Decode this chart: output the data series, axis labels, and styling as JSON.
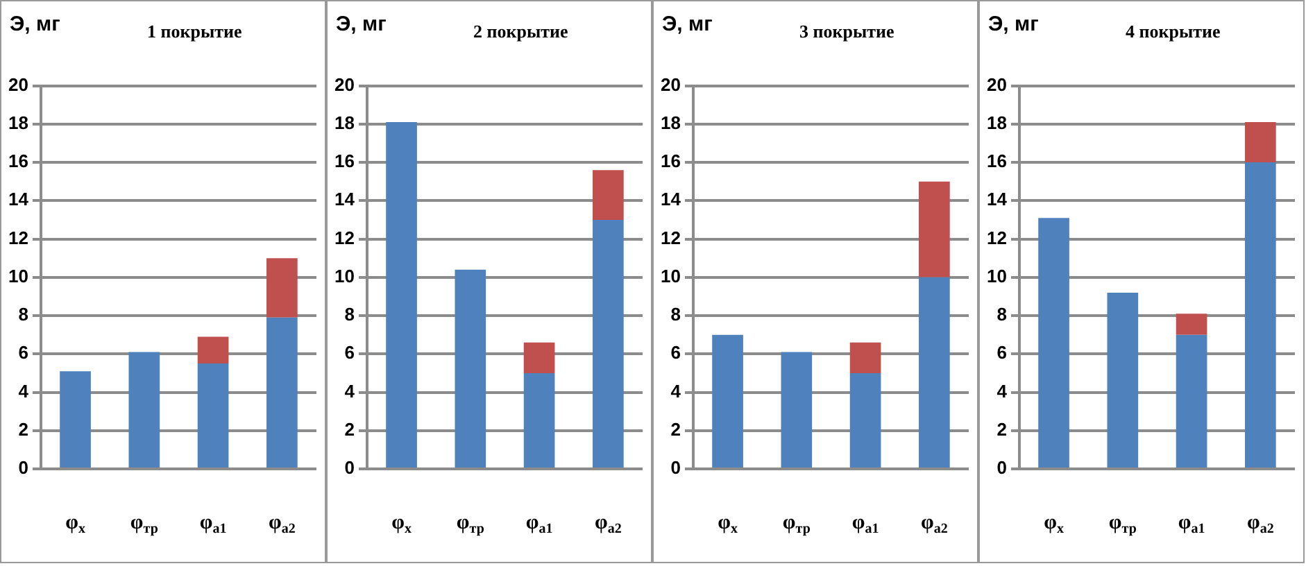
{
  "chart_data": [
    {
      "type": "bar",
      "stacked": true,
      "title": "1 покрытие",
      "ylabel": "Э, мг",
      "categories": [
        "φ$_{х}$",
        "φ$_{тр}$",
        "φ$_{а1}$",
        "φ$_{а2}$"
      ],
      "series": [
        {
          "color": "#4f81bd",
          "values": [
            5.1,
            6.1,
            5.5,
            7.9
          ]
        },
        {
          "color": "#c0504d",
          "values": [
            null,
            null,
            1.4,
            3.1
          ]
        }
      ],
      "ylim": [
        0,
        20
      ],
      "yticks": [
        0,
        2,
        4,
        6,
        8,
        10,
        12,
        14,
        16,
        18,
        20
      ],
      "grid": "y",
      "legend": false
    },
    {
      "type": "bar",
      "stacked": true,
      "title": "2 покрытие",
      "ylabel": "Э, мг",
      "categories": [
        "φ$_{х}$",
        "φ$_{тр}$",
        "φ$_{а1}$",
        "φ$_{а2}$"
      ],
      "series": [
        {
          "color": "#4f81bd",
          "values": [
            18.1,
            10.4,
            5,
            13
          ]
        },
        {
          "color": "#c0504d",
          "values": [
            null,
            null,
            1.6,
            2.6
          ]
        }
      ],
      "ylim": [
        0,
        20
      ],
      "yticks": [
        0,
        2,
        4,
        6,
        8,
        10,
        12,
        14,
        16,
        18,
        20
      ],
      "grid": "y",
      "legend": false
    },
    {
      "type": "bar",
      "stacked": true,
      "title": "3 покрытие",
      "ylabel": "Э, мг",
      "categories": [
        "φ$_{х}$",
        "φ$_{тр}$",
        "φ$_{а1}$",
        "φ$_{а2}$"
      ],
      "series": [
        {
          "color": "#4f81bd",
          "values": [
            7,
            6.1,
            5,
            10
          ]
        },
        {
          "color": "#c0504d",
          "values": [
            null,
            null,
            1.6,
            5
          ]
        }
      ],
      "ylim": [
        0,
        20
      ],
      "yticks": [
        0,
        2,
        4,
        6,
        8,
        10,
        12,
        14,
        16,
        18,
        20
      ],
      "grid": "y",
      "legend": false
    },
    {
      "type": "bar",
      "stacked": true,
      "title": "4 покрытие",
      "ylabel": "Э, мг",
      "categories": [
        "φ$_{х}$",
        "φ$_{тр}$",
        "φ$_{а1}$",
        "φ$_{а2}$"
      ],
      "series": [
        {
          "color": "#4f81bd",
          "values": [
            13.1,
            9.2,
            7,
            16
          ]
        },
        {
          "color": "#c0504d",
          "values": [
            null,
            null,
            1.1,
            2.1
          ]
        }
      ],
      "ylim": [
        0,
        20
      ],
      "yticks": [
        0,
        2,
        4,
        6,
        8,
        10,
        12,
        14,
        16,
        18,
        20
      ],
      "grid": "y",
      "legend": false
    }
  ]
}
